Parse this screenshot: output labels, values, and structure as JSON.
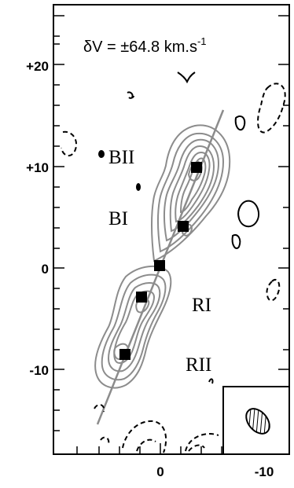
{
  "title": "δV = ±64.8 km.s",
  "title_superscript": "-1",
  "y_tick_labels": [
    "+20",
    "+10",
    "0",
    "-10"
  ],
  "x_tick_labels": [
    "0",
    "-10"
  ],
  "region_labels": [
    "BII",
    "BI",
    "RI",
    "RII"
  ],
  "colors": {
    "frame": "#000000",
    "contour_gray": "#8c8c8c",
    "contour_black": "#000000",
    "marker": "#000000",
    "beam_hatch": "#000000"
  }
}
